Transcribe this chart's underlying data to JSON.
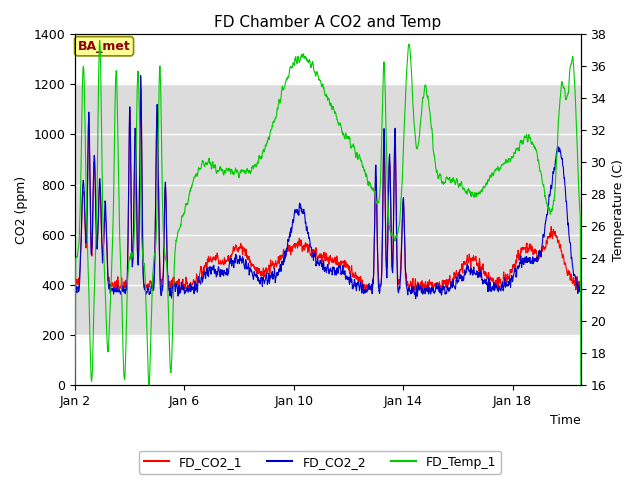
{
  "title": "FD Chamber A CO2 and Temp",
  "xlabel": "Time",
  "ylabel_left": "CO2 (ppm)",
  "ylabel_right": "Temperature (C)",
  "ylim_left": [
    0,
    1400
  ],
  "ylim_right": [
    16,
    38
  ],
  "yticks_left": [
    0,
    200,
    400,
    600,
    800,
    1000,
    1200,
    1400
  ],
  "yticks_right": [
    16,
    18,
    20,
    22,
    24,
    26,
    28,
    30,
    32,
    34,
    36,
    38
  ],
  "xtick_positions": [
    0,
    4,
    8,
    12,
    16
  ],
  "xtick_labels": [
    "Jan 2",
    "Jan 6",
    "Jan 10",
    "Jan 14",
    "Jan 18"
  ],
  "xlim": [
    0,
    18.5
  ],
  "annotation_text": "BA_met",
  "annotation_color": "#8B0000",
  "annotation_bg": "#FFFF99",
  "annotation_border": "#888800",
  "color_co2_1": "#FF0000",
  "color_co2_2": "#0000CC",
  "color_temp": "#00CC00",
  "legend_labels": [
    "FD_CO2_1",
    "FD_CO2_2",
    "FD_Temp_1"
  ],
  "bg_band_ymin": 200,
  "bg_band_ymax": 1200,
  "bg_band_color": "#DCDCDC",
  "grid_color": "#FFFFFF",
  "fig_bg": "#FFFFFF",
  "axes_bg": "#FFFFFF",
  "title_fontsize": 11,
  "label_fontsize": 9,
  "tick_fontsize": 9,
  "linewidth": 0.8
}
